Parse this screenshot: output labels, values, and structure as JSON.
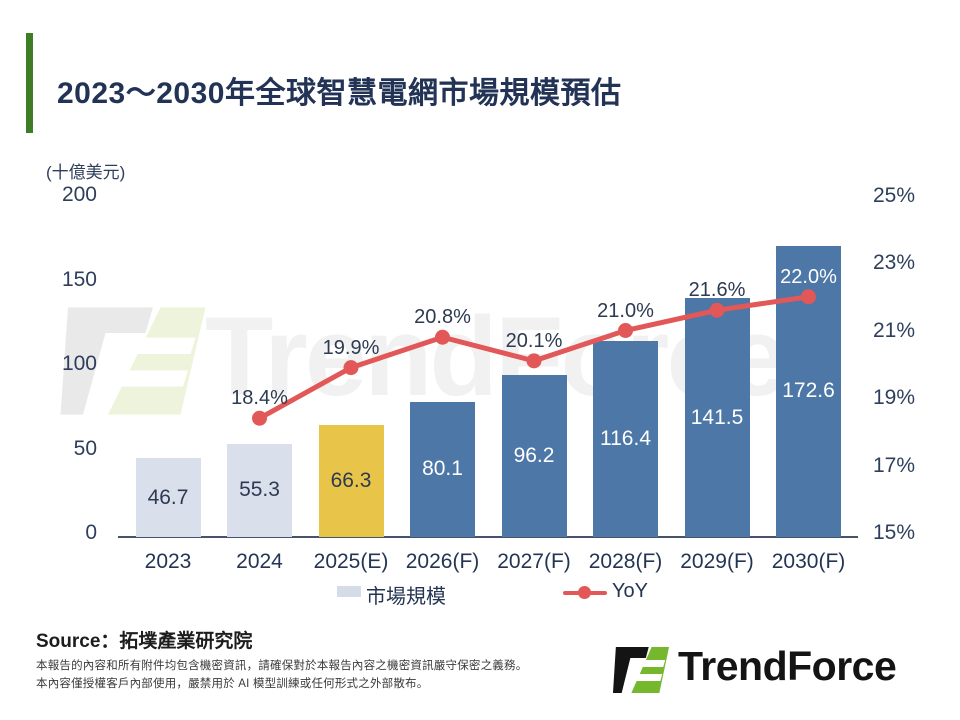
{
  "slide": {
    "title": "2023～2030年全球智慧電網市場規模預估",
    "source_label": "Source：拓墣產業研究院",
    "footer_lines": [
      "本報告的內容和所有附件均包含機密資訊，請確保對於本報告內容之機密資訊嚴守保密之義務。",
      "本內容僅授權客戶內部使用，嚴禁用於 AI 模型訓練或任何形式之外部散布。"
    ],
    "watermark_text": "TrendForce",
    "logo_text": "TrendForce"
  },
  "chart_data": {
    "type": "combo_bar_line",
    "title": "2023～2030年全球智慧電網市場規模預估",
    "categories": [
      "2023",
      "2024",
      "2025(E)",
      "2026(F)",
      "2027(F)",
      "2028(F)",
      "2029(F)",
      "2030(F)"
    ],
    "series": [
      {
        "name": "市場規模",
        "type": "bar",
        "values": [
          46.7,
          55.3,
          66.3,
          80.1,
          96.2,
          116.4,
          141.5,
          172.6
        ]
      },
      {
        "name": "YoY",
        "type": "line",
        "unit": "%",
        "values": [
          null,
          18.4,
          19.9,
          20.8,
          20.1,
          21.0,
          21.6,
          22.0
        ]
      }
    ],
    "left_axis": {
      "label": "(十億美元)",
      "ticks": [
        200,
        150,
        100,
        50,
        0
      ],
      "ylim": [
        0,
        200
      ]
    },
    "right_axis": {
      "ticks": [
        "25%",
        "23%",
        "21%",
        "19%",
        "17%",
        "15%"
      ],
      "ylim": [
        15,
        25
      ]
    },
    "bar_styles": [
      "actual",
      "actual",
      "estimate",
      "forecast",
      "forecast",
      "forecast",
      "forecast",
      "forecast"
    ],
    "legend": [
      {
        "label": "市場規模"
      },
      {
        "label": "YoY"
      }
    ],
    "colors": {
      "bar_actual": "#d9e0ec",
      "bar_estimate": "#e8c549",
      "bar_forecast": "#4c77a6",
      "line": "#e25757",
      "label_on_light": "#2d3a52",
      "label_on_dark": "#ffffff",
      "axis_text": "#2e3f5c",
      "accent_green": "#3e7d23",
      "logo_green": "#76b82d"
    }
  }
}
